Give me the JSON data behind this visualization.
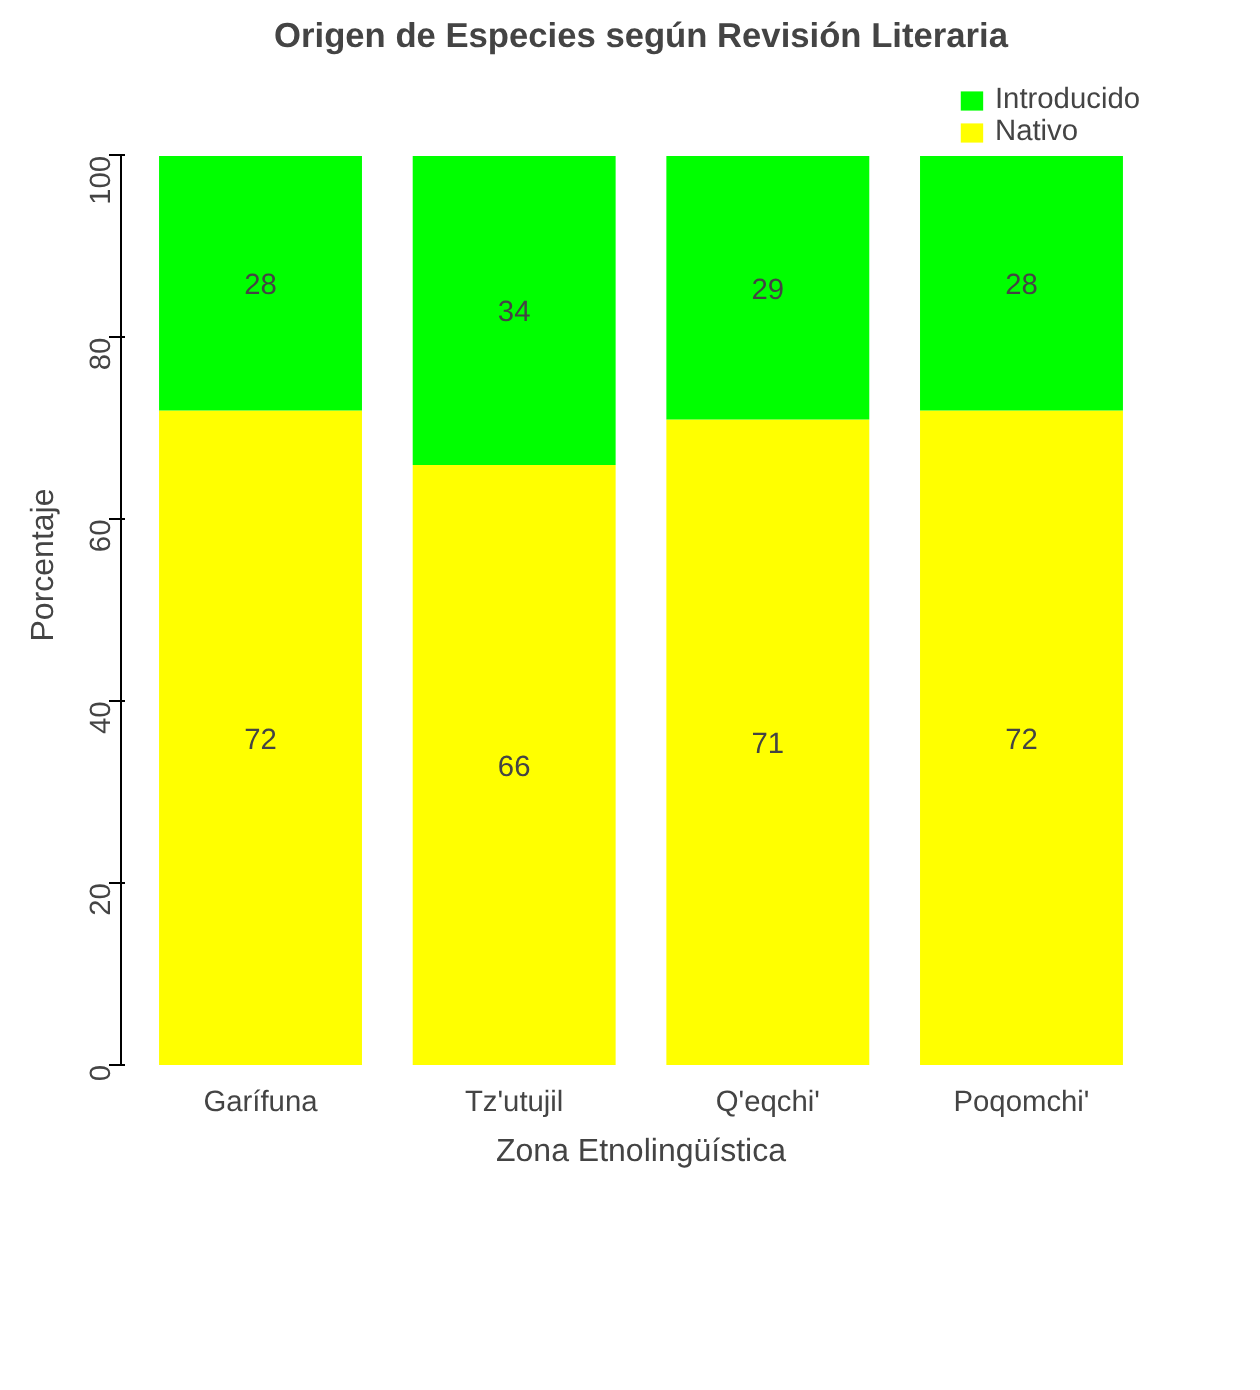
{
  "chart_data": {
    "type": "bar",
    "stacked": true,
    "title": "Origen de Especies según Revisión Literaria",
    "xlabel": "Zona Etnolingüística",
    "ylabel": "Porcentaje",
    "categories": [
      "Garífuna",
      "Tz'utujil",
      "Q'eqchi'",
      "Poqomchi'"
    ],
    "series": [
      {
        "name": "Nativo",
        "color": "#ffff00",
        "values": [
          72,
          66,
          71,
          72
        ]
      },
      {
        "name": "Introducido",
        "color": "#00ff00",
        "values": [
          28,
          34,
          29,
          28
        ]
      }
    ],
    "ylim": [
      0,
      100
    ],
    "yticks": [
      0,
      20,
      40,
      60,
      80,
      100
    ],
    "data_labels": true,
    "grid": false,
    "legend": "top right"
  }
}
